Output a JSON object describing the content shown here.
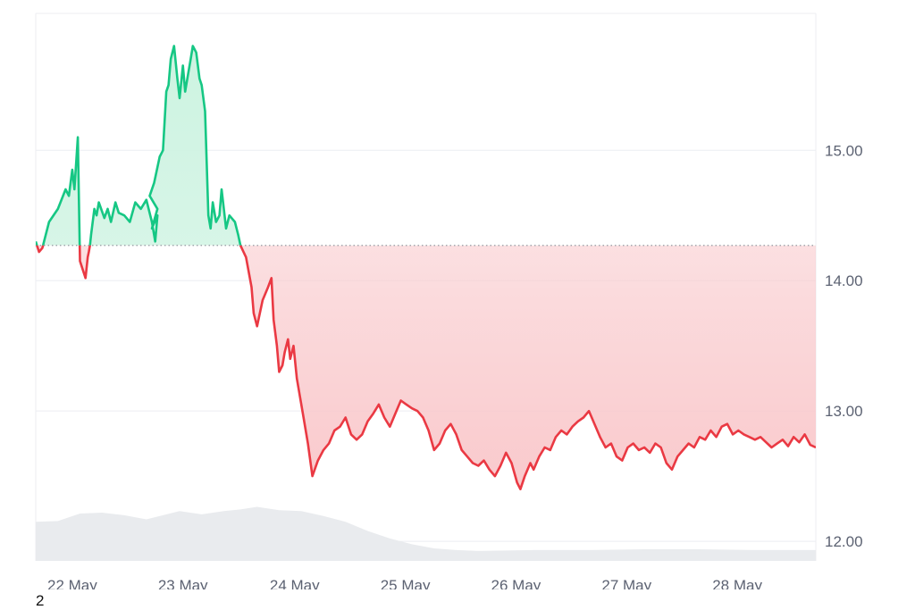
{
  "footnote": "2",
  "chart_data": {
    "type": "area",
    "title": "",
    "xlabel": "",
    "ylabel": "",
    "baseline": 14.27,
    "x_range": [
      0.0,
      7.05
    ],
    "ylim": [
      11.85,
      16.05
    ],
    "y_ticks": [
      12.0,
      13.0,
      14.0,
      15.0
    ],
    "y_tick_labels": [
      "12.00",
      "13.00",
      "14.00",
      "15.00"
    ],
    "x_ticks": [
      0.33,
      1.33,
      2.34,
      3.34,
      4.34,
      5.34,
      6.34
    ],
    "x_tick_labels": [
      "22 May",
      "23 May",
      "24 May",
      "25 May",
      "26 May",
      "27 May",
      "28 May"
    ],
    "grid": "horizontal",
    "colors": {
      "above": "#16c784",
      "below": "#ea3943",
      "above_fill": "#cdf3e1",
      "below_fill": "#f9c9cc",
      "volume": "#e9ebee",
      "grid": "#eceef2",
      "baseline": "#8a8f99"
    },
    "price_series": {
      "x": [
        0.0,
        0.03,
        0.06,
        0.12,
        0.2,
        0.27,
        0.3,
        0.33,
        0.35,
        0.38,
        0.4,
        0.45,
        0.47,
        0.48,
        0.49,
        0.5,
        0.53,
        0.55,
        0.57,
        0.62,
        0.65,
        0.68,
        0.72,
        0.75,
        0.8,
        0.85,
        0.9,
        0.95,
        1.0,
        1.05,
        1.08,
        1.1,
        1.05,
        1.1,
        1.03,
        1.07,
        1.12,
        1.15,
        1.18,
        1.2,
        1.22,
        1.25,
        1.28,
        1.3,
        1.33,
        1.35,
        1.38,
        1.4,
        1.42,
        1.45,
        1.48,
        1.5,
        1.53,
        1.56,
        1.58,
        1.6,
        1.63,
        1.66,
        1.68,
        1.7,
        1.72,
        1.75,
        1.8,
        1.83,
        1.85,
        1.9,
        1.95,
        1.97,
        2.0,
        2.05,
        2.1,
        2.13,
        2.15,
        2.18,
        2.2,
        2.23,
        2.25,
        2.28,
        2.3,
        2.33,
        2.36,
        2.38,
        2.42,
        2.46,
        2.5,
        2.55,
        2.6,
        2.65,
        2.7,
        2.75,
        2.8,
        2.85,
        2.9,
        2.95,
        3.0,
        3.05,
        3.1,
        3.15,
        3.2,
        3.25,
        3.3,
        3.35,
        3.4,
        3.45,
        3.5,
        3.55,
        3.6,
        3.65,
        3.7,
        3.75,
        3.8,
        3.85,
        3.9,
        3.95,
        4.0,
        4.05,
        4.1,
        4.15,
        4.2,
        4.25,
        4.3,
        4.35,
        4.38,
        4.42,
        4.47,
        4.5,
        4.55,
        4.6,
        4.65,
        4.7,
        4.75,
        4.8,
        4.85,
        4.9,
        4.95,
        5.0,
        5.05,
        5.1,
        5.15,
        5.2,
        5.25,
        5.3,
        5.35,
        5.4,
        5.45,
        5.5,
        5.55,
        5.6,
        5.65,
        5.7,
        5.75,
        5.8,
        5.85,
        5.9,
        5.95,
        6.0,
        6.05,
        6.1,
        6.15,
        6.2,
        6.25,
        6.3,
        6.35,
        6.4,
        6.45,
        6.5,
        6.55,
        6.6,
        6.65,
        6.7,
        6.75,
        6.8,
        6.85,
        6.9,
        6.95,
        7.0,
        7.05
      ],
      "y": [
        14.3,
        14.22,
        14.25,
        14.45,
        14.55,
        14.7,
        14.65,
        14.85,
        14.7,
        15.1,
        14.15,
        14.02,
        14.18,
        14.22,
        14.27,
        14.35,
        14.55,
        14.5,
        14.6,
        14.48,
        14.55,
        14.45,
        14.6,
        14.52,
        14.5,
        14.45,
        14.6,
        14.55,
        14.62,
        14.45,
        14.3,
        14.5,
        14.4,
        14.55,
        14.65,
        14.75,
        14.95,
        15.0,
        15.45,
        15.5,
        15.7,
        15.8,
        15.55,
        15.4,
        15.65,
        15.45,
        15.6,
        15.7,
        15.8,
        15.75,
        15.55,
        15.5,
        15.3,
        14.5,
        14.4,
        14.6,
        14.45,
        14.5,
        14.7,
        14.55,
        14.4,
        14.5,
        14.45,
        14.35,
        14.27,
        14.18,
        13.95,
        13.75,
        13.65,
        13.85,
        13.95,
        14.02,
        13.7,
        13.5,
        13.3,
        13.35,
        13.45,
        13.55,
        13.4,
        13.5,
        13.25,
        13.15,
        12.95,
        12.75,
        12.5,
        12.62,
        12.7,
        12.75,
        12.85,
        12.88,
        12.95,
        12.82,
        12.78,
        12.82,
        12.92,
        12.98,
        13.05,
        12.95,
        12.88,
        12.98,
        13.08,
        13.05,
        13.02,
        13.0,
        12.95,
        12.85,
        12.7,
        12.75,
        12.85,
        12.9,
        12.82,
        12.7,
        12.65,
        12.6,
        12.58,
        12.62,
        12.55,
        12.5,
        12.58,
        12.68,
        12.6,
        12.45,
        12.4,
        12.5,
        12.6,
        12.55,
        12.65,
        12.72,
        12.7,
        12.8,
        12.85,
        12.82,
        12.88,
        12.92,
        12.95,
        13.0,
        12.9,
        12.8,
        12.72,
        12.75,
        12.65,
        12.62,
        12.72,
        12.75,
        12.7,
        12.72,
        12.68,
        12.75,
        12.72,
        12.6,
        12.55,
        12.65,
        12.7,
        12.75,
        12.72,
        12.8,
        12.78,
        12.85,
        12.8,
        12.88,
        12.9,
        12.82,
        12.85,
        12.82,
        12.8,
        12.78,
        12.8,
        12.76,
        12.72,
        12.75,
        12.78,
        12.73,
        12.8,
        12.76,
        12.82,
        12.74,
        12.72
      ]
    },
    "volume_series": {
      "x": [
        0.0,
        0.2,
        0.4,
        0.6,
        0.8,
        1.0,
        1.15,
        1.3,
        1.5,
        1.7,
        1.85,
        2.0,
        2.2,
        2.4,
        2.6,
        2.8,
        3.0,
        3.2,
        3.4,
        3.6,
        3.8,
        4.0,
        4.5,
        5.0,
        5.5,
        6.0,
        6.5,
        7.05
      ],
      "level": [
        0.47,
        0.48,
        0.57,
        0.58,
        0.55,
        0.5,
        0.55,
        0.6,
        0.56,
        0.6,
        0.62,
        0.65,
        0.61,
        0.6,
        0.54,
        0.47,
        0.36,
        0.27,
        0.2,
        0.15,
        0.13,
        0.12,
        0.13,
        0.13,
        0.14,
        0.14,
        0.13,
        0.13
      ]
    }
  }
}
